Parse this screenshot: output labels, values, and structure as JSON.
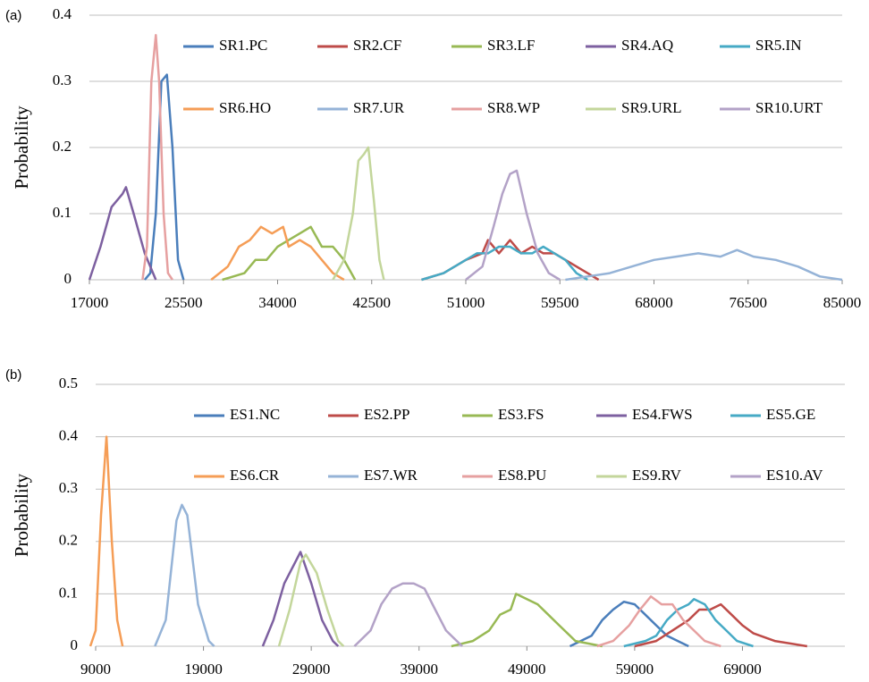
{
  "chart_data": [
    {
      "type": "line",
      "panel_label": "(a)",
      "y_label": "Probability",
      "xlim": [
        17000,
        85000
      ],
      "xticks": [
        17000,
        25500,
        34000,
        42500,
        51000,
        59500,
        68000,
        76500,
        85000
      ],
      "ylim": [
        0,
        0.4
      ],
      "yticks": [
        0,
        0.1,
        0.2,
        0.3,
        0.4
      ],
      "grid": true,
      "series": [
        {
          "name": "SR1.PC",
          "color": "#4a7ebb",
          "x": [
            22000,
            22500,
            23000,
            23500,
            24000,
            24500,
            25000,
            25500
          ],
          "values": [
            0,
            0.01,
            0.1,
            0.3,
            0.31,
            0.2,
            0.03,
            0
          ]
        },
        {
          "name": "SR2.CF",
          "color": "#be4b48",
          "x": [
            47000,
            49000,
            51000,
            52500,
            53000,
            54000,
            55000,
            56000,
            57000,
            58000,
            59000,
            60000,
            61000,
            62000,
            63000
          ],
          "values": [
            0,
            0.01,
            0.03,
            0.04,
            0.06,
            0.04,
            0.06,
            0.04,
            0.05,
            0.04,
            0.04,
            0.03,
            0.02,
            0.01,
            0
          ]
        },
        {
          "name": "SR3.LF",
          "color": "#98b954",
          "x": [
            29000,
            31000,
            32000,
            33000,
            34000,
            35000,
            36000,
            37000,
            38000,
            39000,
            40000,
            41000
          ],
          "values": [
            0,
            0.01,
            0.03,
            0.03,
            0.05,
            0.06,
            0.07,
            0.08,
            0.05,
            0.05,
            0.03,
            0
          ]
        },
        {
          "name": "SR4.AQ",
          "color": "#7d60a0",
          "x": [
            17000,
            18000,
            19000,
            20000,
            20300,
            21000,
            22000,
            23000
          ],
          "values": [
            0,
            0.05,
            0.11,
            0.13,
            0.14,
            0.1,
            0.04,
            0
          ]
        },
        {
          "name": "SR5.IN",
          "color": "#46aac5",
          "x": [
            47000,
            49000,
            50000,
            51000,
            52000,
            53000,
            54000,
            55000,
            56000,
            57000,
            58000,
            59000,
            60000,
            61000,
            62000
          ],
          "values": [
            0,
            0.01,
            0.02,
            0.03,
            0.04,
            0.04,
            0.05,
            0.05,
            0.04,
            0.04,
            0.05,
            0.04,
            0.03,
            0.01,
            0
          ]
        },
        {
          "name": "SR6.HO",
          "color": "#f59d56",
          "x": [
            28000,
            29500,
            30500,
            31500,
            32500,
            33500,
            34500,
            35000,
            36000,
            37000,
            38000,
            39000,
            40000
          ],
          "values": [
            0,
            0.02,
            0.05,
            0.06,
            0.08,
            0.07,
            0.08,
            0.05,
            0.06,
            0.05,
            0.03,
            0.01,
            0
          ]
        },
        {
          "name": "SR7.UR",
          "color": "#95b3d7",
          "x": [
            60000,
            62000,
            64000,
            66000,
            68000,
            70000,
            72000,
            74000,
            75500,
            77000,
            79000,
            81000,
            83000,
            85000
          ],
          "values": [
            0,
            0.005,
            0.01,
            0.02,
            0.03,
            0.035,
            0.04,
            0.035,
            0.045,
            0.035,
            0.03,
            0.02,
            0.005,
            0
          ]
        },
        {
          "name": "SR8.WP",
          "color": "#e6a0a0",
          "x": [
            21800,
            22200,
            22600,
            23000,
            23300,
            23700,
            24100,
            24500
          ],
          "values": [
            0,
            0.05,
            0.3,
            0.37,
            0.3,
            0.1,
            0.01,
            0
          ]
        },
        {
          "name": "SR9.URL",
          "color": "#c3d69b",
          "x": [
            39000,
            40000,
            40800,
            41300,
            41800,
            42200,
            42700,
            43200,
            43600
          ],
          "values": [
            0,
            0.03,
            0.1,
            0.18,
            0.19,
            0.2,
            0.12,
            0.03,
            0
          ]
        },
        {
          "name": "SR10.URT",
          "color": "#b3a2c7",
          "x": [
            51000,
            52500,
            53500,
            54300,
            55000,
            55600,
            56500,
            57500,
            58500,
            59500
          ],
          "values": [
            0,
            0.02,
            0.08,
            0.13,
            0.16,
            0.165,
            0.1,
            0.04,
            0.01,
            0
          ]
        }
      ]
    },
    {
      "type": "line",
      "panel_label": "(b)",
      "y_label": "Probability",
      "xlim": [
        9000,
        78500
      ],
      "xticks": [
        9000,
        19000,
        29000,
        39000,
        49000,
        59000,
        69000
      ],
      "ylim": [
        0,
        0.5
      ],
      "yticks": [
        0,
        0.1,
        0.2,
        0.3,
        0.4,
        0.5
      ],
      "grid": true,
      "series": [
        {
          "name": "ES1.NC",
          "color": "#4a7ebb",
          "x": [
            53000,
            55000,
            56000,
            57000,
            58000,
            59000,
            60000,
            61000,
            62000,
            63000,
            64000
          ],
          "values": [
            0,
            0.02,
            0.05,
            0.07,
            0.085,
            0.08,
            0.06,
            0.04,
            0.02,
            0.01,
            0
          ]
        },
        {
          "name": "ES2.PP",
          "color": "#be4b48",
          "x": [
            59000,
            61000,
            62500,
            64000,
            65000,
            66000,
            67000,
            68000,
            69000,
            70000,
            72000,
            75000
          ],
          "values": [
            0,
            0.01,
            0.03,
            0.05,
            0.07,
            0.07,
            0.08,
            0.06,
            0.04,
            0.025,
            0.01,
            0
          ]
        },
        {
          "name": "ES3.FS",
          "color": "#98b954",
          "x": [
            42000,
            44000,
            45500,
            46500,
            47500,
            48000,
            49000,
            50000,
            51000,
            52000,
            53500,
            56000
          ],
          "values": [
            0,
            0.01,
            0.03,
            0.06,
            0.07,
            0.1,
            0.09,
            0.08,
            0.06,
            0.04,
            0.01,
            0
          ]
        },
        {
          "name": "ES4.FWS",
          "color": "#7d60a0",
          "x": [
            24500,
            25500,
            26500,
            27500,
            28000,
            29000,
            30000,
            31000,
            31500
          ],
          "values": [
            0,
            0.05,
            0.12,
            0.16,
            0.18,
            0.12,
            0.05,
            0.01,
            0
          ]
        },
        {
          "name": "ES5.GE",
          "color": "#46aac5",
          "x": [
            58000,
            60000,
            61000,
            62000,
            63000,
            64000,
            64500,
            65500,
            66500,
            67500,
            68500,
            70000
          ],
          "values": [
            0,
            0.01,
            0.02,
            0.05,
            0.07,
            0.08,
            0.09,
            0.08,
            0.05,
            0.03,
            0.01,
            0
          ]
        },
        {
          "name": "ES6.CR",
          "color": "#f59d56",
          "x": [
            8500,
            9000,
            9500,
            10000,
            10500,
            11000,
            11500
          ],
          "values": [
            0,
            0.03,
            0.25,
            0.4,
            0.2,
            0.05,
            0
          ]
        },
        {
          "name": "ES7.WR",
          "color": "#95b3d7",
          "x": [
            14500,
            15500,
            16500,
            17000,
            17500,
            18500,
            19500,
            20000
          ],
          "values": [
            0,
            0.05,
            0.24,
            0.27,
            0.25,
            0.08,
            0.01,
            0
          ]
        },
        {
          "name": "ES8.PU",
          "color": "#e6a0a0",
          "x": [
            55500,
            57000,
            58500,
            59500,
            60500,
            61500,
            62500,
            63500,
            64500,
            65500,
            67000
          ],
          "values": [
            0,
            0.01,
            0.04,
            0.07,
            0.095,
            0.08,
            0.08,
            0.05,
            0.03,
            0.01,
            0
          ]
        },
        {
          "name": "ES9.RV",
          "color": "#c3d69b",
          "x": [
            26000,
            27000,
            28000,
            28500,
            29500,
            30500,
            31500,
            32000
          ],
          "values": [
            0,
            0.07,
            0.16,
            0.175,
            0.14,
            0.07,
            0.01,
            0
          ]
        },
        {
          "name": "ES10.AV",
          "color": "#b3a2c7",
          "x": [
            33000,
            34500,
            35500,
            36500,
            37500,
            38500,
            39500,
            40500,
            41500,
            43000
          ],
          "values": [
            0,
            0.03,
            0.08,
            0.11,
            0.12,
            0.12,
            0.11,
            0.07,
            0.03,
            0
          ]
        }
      ]
    }
  ]
}
